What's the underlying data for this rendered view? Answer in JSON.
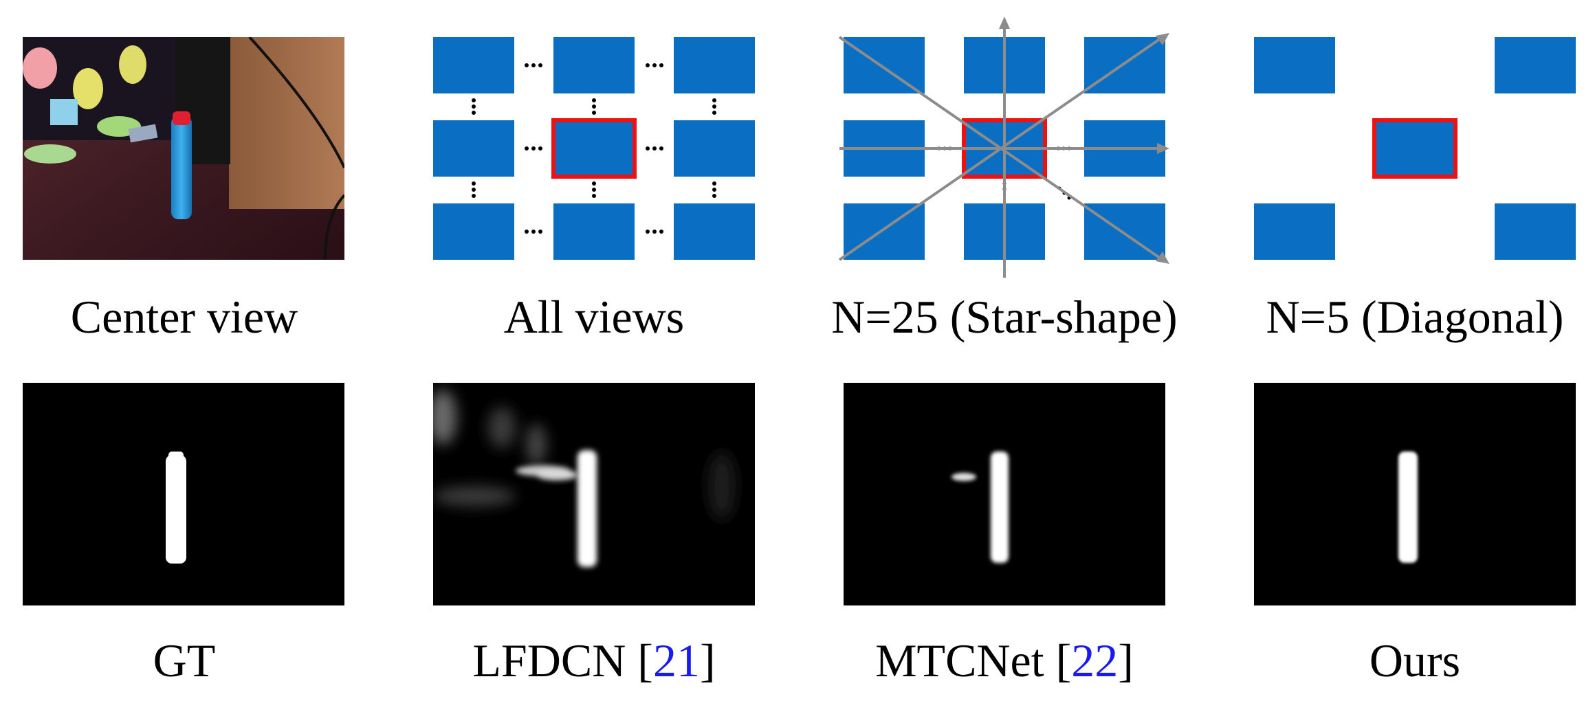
{
  "figure": {
    "row1": [
      {
        "id": "center-view",
        "caption": "Center view"
      },
      {
        "id": "all-views",
        "caption": "All views"
      },
      {
        "id": "star",
        "caption": "N=25 (Star-shape)"
      },
      {
        "id": "diagonal",
        "caption": "N=5 (Diagonal)"
      }
    ],
    "row2": [
      {
        "id": "gt",
        "caption": "GT",
        "ref": ""
      },
      {
        "id": "lfdcn",
        "caption": "LFDCN [",
        "ref": "21",
        "close": "]"
      },
      {
        "id": "mtcnet",
        "caption": "MTCNet [",
        "ref": "22",
        "close": "]"
      },
      {
        "id": "ours",
        "caption": "Ours",
        "ref": ""
      }
    ],
    "colors": {
      "view": "#0a6fc2",
      "selected": "#ee1111",
      "arrow": "#8c8c8c",
      "ref": "#1a1aee"
    }
  }
}
